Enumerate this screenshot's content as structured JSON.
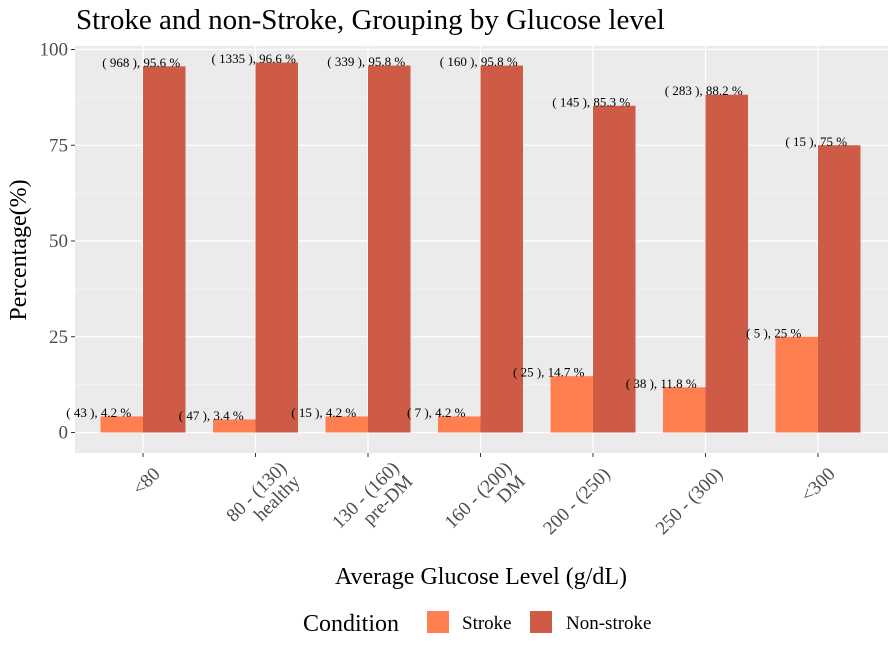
{
  "chart_data": {
    "type": "bar",
    "title": "Stroke and non-Stroke, Grouping by Glucose level",
    "xlabel": "Average Glucose Level (g/dL)",
    "ylabel": "Percentage(%)",
    "ylim": [
      0,
      100
    ],
    "yticks": [
      0,
      25,
      50,
      75,
      100
    ],
    "grid": true,
    "legend_position": "bottom",
    "legend_title": "Condition",
    "categories": [
      [
        "<80"
      ],
      [
        "80 - (130)",
        "healthy"
      ],
      [
        "130 - (160)",
        "pre-DM"
      ],
      [
        "160 - (200)",
        "DM"
      ],
      [
        "200 - (250)"
      ],
      [
        "250 - (300)"
      ],
      [
        "<300"
      ]
    ],
    "series": [
      {
        "name": "Stroke",
        "color": "#FF7F50",
        "values": [
          4.2,
          3.4,
          4.2,
          4.2,
          14.7,
          11.8,
          25
        ],
        "labels": [
          "( 43 ), 4.2 %",
          "( 47 ), 3.4 %",
          "( 15 ), 4.2 %",
          "( 7 ), 4.2 %",
          "( 25 ), 14.7 %",
          "( 38 ), 11.8 %",
          "( 5 ), 25 %"
        ]
      },
      {
        "name": "Non-stroke",
        "color": "#CD5B45",
        "values": [
          95.6,
          96.6,
          95.8,
          95.8,
          85.3,
          88.2,
          75
        ],
        "labels": [
          "( 968 ), 95.6 %",
          "( 1335 ), 96.6 %",
          "( 339 ), 95.8 %",
          "( 160 ), 95.8 %",
          "( 145 ), 85.3 %",
          "( 283 ), 88.2 %",
          "( 15 ), 75 %"
        ]
      }
    ]
  }
}
